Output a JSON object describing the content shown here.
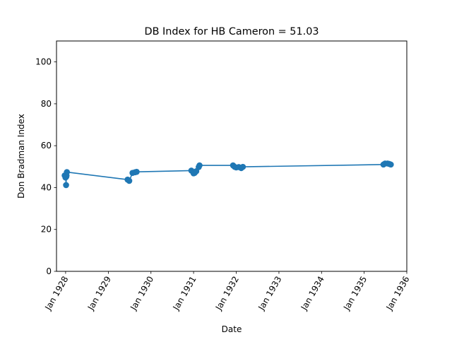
{
  "chart_data": {
    "type": "line",
    "title": "DB Index for HB Cameron = 51.03",
    "xlabel": "Date",
    "ylabel": "Don Bradman Index",
    "xlim": [
      "1927-10-15",
      "1936-01-01"
    ],
    "ylim": [
      0,
      110
    ],
    "x_ticks": [
      {
        "date": "1928-01-01",
        "label": "Jan 1928"
      },
      {
        "date": "1929-01-01",
        "label": "Jan 1929"
      },
      {
        "date": "1930-01-01",
        "label": "Jan 1930"
      },
      {
        "date": "1931-01-01",
        "label": "Jan 1931"
      },
      {
        "date": "1932-01-01",
        "label": "Jan 1932"
      },
      {
        "date": "1933-01-01",
        "label": "Jan 1933"
      },
      {
        "date": "1934-01-01",
        "label": "Jan 1934"
      },
      {
        "date": "1935-01-01",
        "label": "Jan 1935"
      },
      {
        "date": "1936-01-01",
        "label": "Jan 1936"
      }
    ],
    "y_ticks": [
      0,
      20,
      40,
      60,
      80,
      100
    ],
    "grid": false,
    "series": [
      {
        "color": "#1f77b4",
        "points": [
          {
            "x": "1927-12-24",
            "y": 45.8
          },
          {
            "x": "1927-12-31",
            "y": 44.8
          },
          {
            "x": "1928-01-02",
            "y": 45.5
          },
          {
            "x": "1928-01-05",
            "y": 41.2
          },
          {
            "x": "1928-01-07",
            "y": 45.2
          },
          {
            "x": "1928-01-09",
            "y": 45.8
          },
          {
            "x": "1928-01-12",
            "y": 47.4
          },
          {
            "x": "1929-06-15",
            "y": 43.8
          },
          {
            "x": "1929-06-29",
            "y": 43.2
          },
          {
            "x": "1929-07-27",
            "y": 47.0
          },
          {
            "x": "1929-08-17",
            "y": 47.3
          },
          {
            "x": "1929-08-31",
            "y": 47.5
          },
          {
            "x": "1930-12-13",
            "y": 48.1
          },
          {
            "x": "1931-01-01",
            "y": 46.8
          },
          {
            "x": "1931-01-10",
            "y": 47.0
          },
          {
            "x": "1931-01-24",
            "y": 47.8
          },
          {
            "x": "1931-02-14",
            "y": 49.8
          },
          {
            "x": "1931-02-21",
            "y": 50.6
          },
          {
            "x": "1931-12-05",
            "y": 50.6
          },
          {
            "x": "1931-12-19",
            "y": 49.9
          },
          {
            "x": "1932-01-01",
            "y": 49.6
          },
          {
            "x": "1932-01-23",
            "y": 49.8
          },
          {
            "x": "1932-02-13",
            "y": 49.3
          },
          {
            "x": "1932-02-27",
            "y": 49.9
          },
          {
            "x": "1935-06-15",
            "y": 51.0
          },
          {
            "x": "1935-06-29",
            "y": 51.5
          },
          {
            "x": "1935-07-20",
            "y": 51.5
          },
          {
            "x": "1935-08-03",
            "y": 51.3
          },
          {
            "x": "1935-08-17",
            "y": 51.0
          }
        ]
      }
    ]
  }
}
